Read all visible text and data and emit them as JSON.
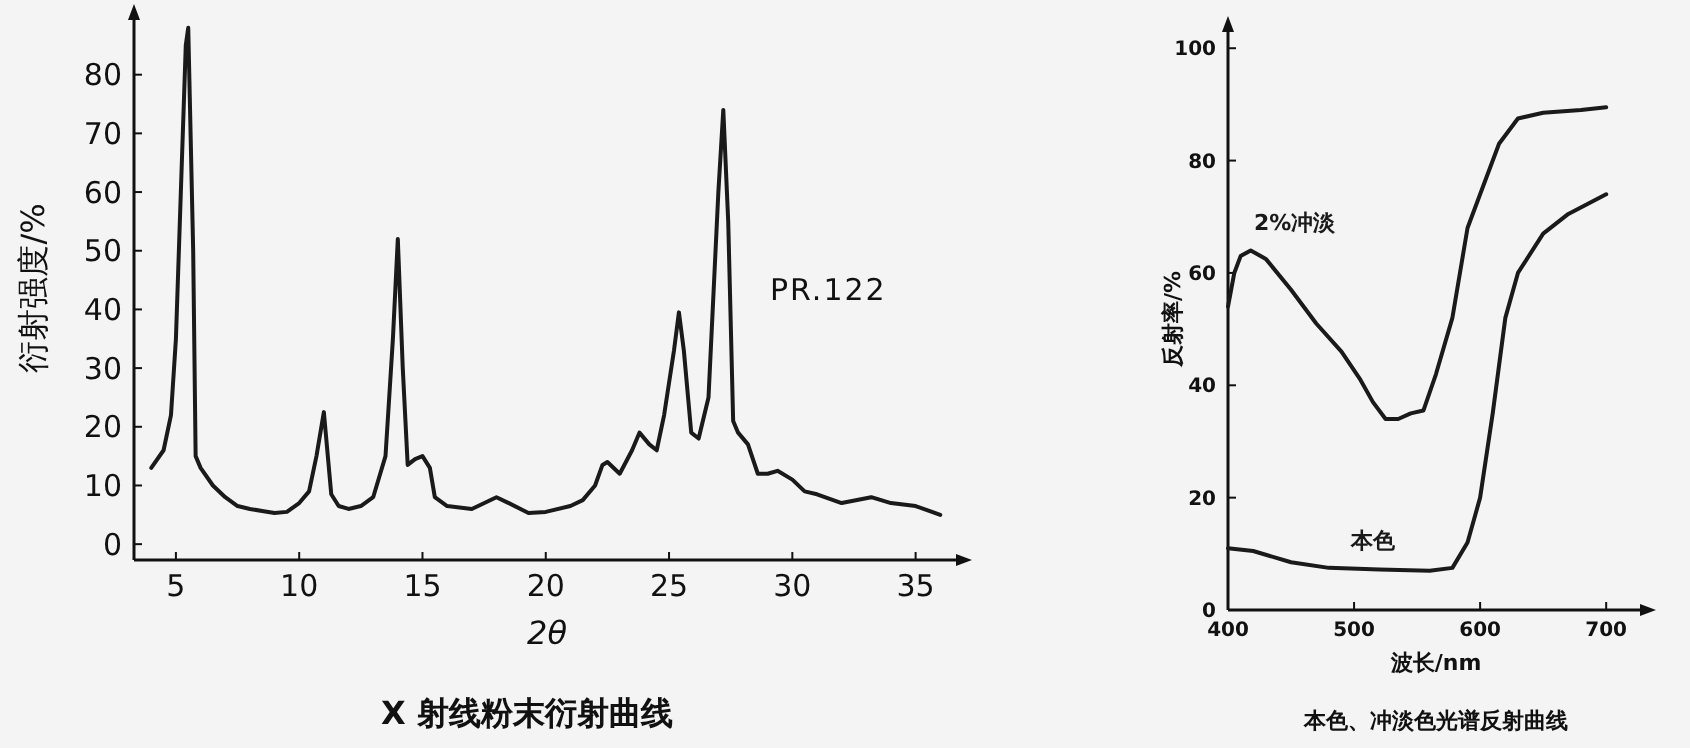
{
  "chart_data": [
    {
      "type": "line",
      "title": "X 射线粉末衍射曲线",
      "xlabel": "2θ",
      "ylabel": "衍射强度/%",
      "annotations": [
        "PR.122"
      ],
      "xlim": [
        3.3,
        36.8
      ],
      "ylim": [
        -2.7,
        90
      ],
      "xticks": [
        5,
        10,
        15,
        20,
        25,
        30,
        35
      ],
      "yticks": [
        0,
        10,
        20,
        30,
        40,
        50,
        60,
        70,
        80
      ],
      "series": [
        {
          "color": "#1a1a1a",
          "x": [
            4.0,
            4.5,
            4.8,
            5.0,
            5.2,
            5.4,
            5.5,
            5.7,
            5.8,
            6.0,
            6.5,
            7.0,
            7.5,
            8.0,
            9.0,
            9.5,
            10.0,
            10.4,
            10.7,
            11.0,
            11.3,
            11.6,
            12.0,
            12.5,
            13.0,
            13.5,
            13.8,
            14.0,
            14.2,
            14.4,
            14.7,
            15.0,
            15.3,
            15.5,
            16.0,
            17.0,
            18.0,
            18.5,
            19.3,
            20.0,
            21.0,
            21.5,
            22.0,
            22.3,
            22.5,
            23.0,
            23.5,
            23.8,
            24.2,
            24.5,
            24.8,
            25.2,
            25.4,
            25.6,
            25.9,
            26.2,
            26.6,
            27.0,
            27.2,
            27.4,
            27.6,
            27.8,
            28.2,
            28.6,
            29.0,
            29.4,
            30.0,
            30.5,
            31.0,
            32.0,
            33.2,
            34.0,
            35.0,
            36.0
          ],
          "values": [
            13,
            16,
            22,
            35,
            60,
            85,
            88,
            50,
            15,
            13,
            10,
            8,
            6.5,
            6,
            5.3,
            5.5,
            7,
            9,
            15,
            22.5,
            8.5,
            6.5,
            6,
            6.5,
            8,
            15,
            35,
            52,
            30,
            13.5,
            14.5,
            15,
            13,
            8,
            6.5,
            6,
            8,
            7,
            5.3,
            5.5,
            6.5,
            7.5,
            10,
            13.5,
            14,
            12,
            16,
            19,
            17,
            16,
            22,
            33,
            39.5,
            33,
            19,
            18,
            25,
            60,
            74,
            55,
            21,
            19,
            17,
            12,
            12,
            12.5,
            11,
            9,
            8.5,
            7,
            8,
            7,
            6.5,
            5
          ]
        }
      ]
    },
    {
      "type": "line",
      "title": "本色、冲淡色光谱反射曲线",
      "xlabel": "波长/nm",
      "ylabel": "反射率/%",
      "xlim": [
        400,
        730
      ],
      "ylim": [
        0,
        103.6
      ],
      "xticks": [
        400,
        500,
        600,
        700
      ],
      "yticks": [
        0,
        20,
        40,
        60,
        80,
        100
      ],
      "series": [
        {
          "name": "2%冲淡",
          "color": "#1a1a1a",
          "x": [
            400,
            405,
            410,
            418,
            430,
            450,
            470,
            490,
            505,
            515,
            525,
            535,
            545,
            555,
            565,
            578,
            590,
            600,
            615,
            630,
            650,
            680,
            700
          ],
          "values": [
            54,
            60,
            63,
            64,
            62.5,
            57,
            51,
            46,
            41,
            37,
            34,
            34,
            35,
            35.5,
            42,
            52,
            68,
            74,
            83,
            87.5,
            88.5,
            89,
            89.5
          ]
        },
        {
          "name": "本色",
          "color": "#1a1a1a",
          "x": [
            400,
            420,
            450,
            480,
            520,
            560,
            578,
            590,
            600,
            610,
            620,
            630,
            650,
            670,
            700
          ],
          "values": [
            11,
            10.5,
            8.5,
            7.5,
            7.2,
            7,
            7.5,
            12,
            20,
            35,
            52,
            60,
            67,
            70.5,
            74
          ]
        }
      ]
    }
  ]
}
